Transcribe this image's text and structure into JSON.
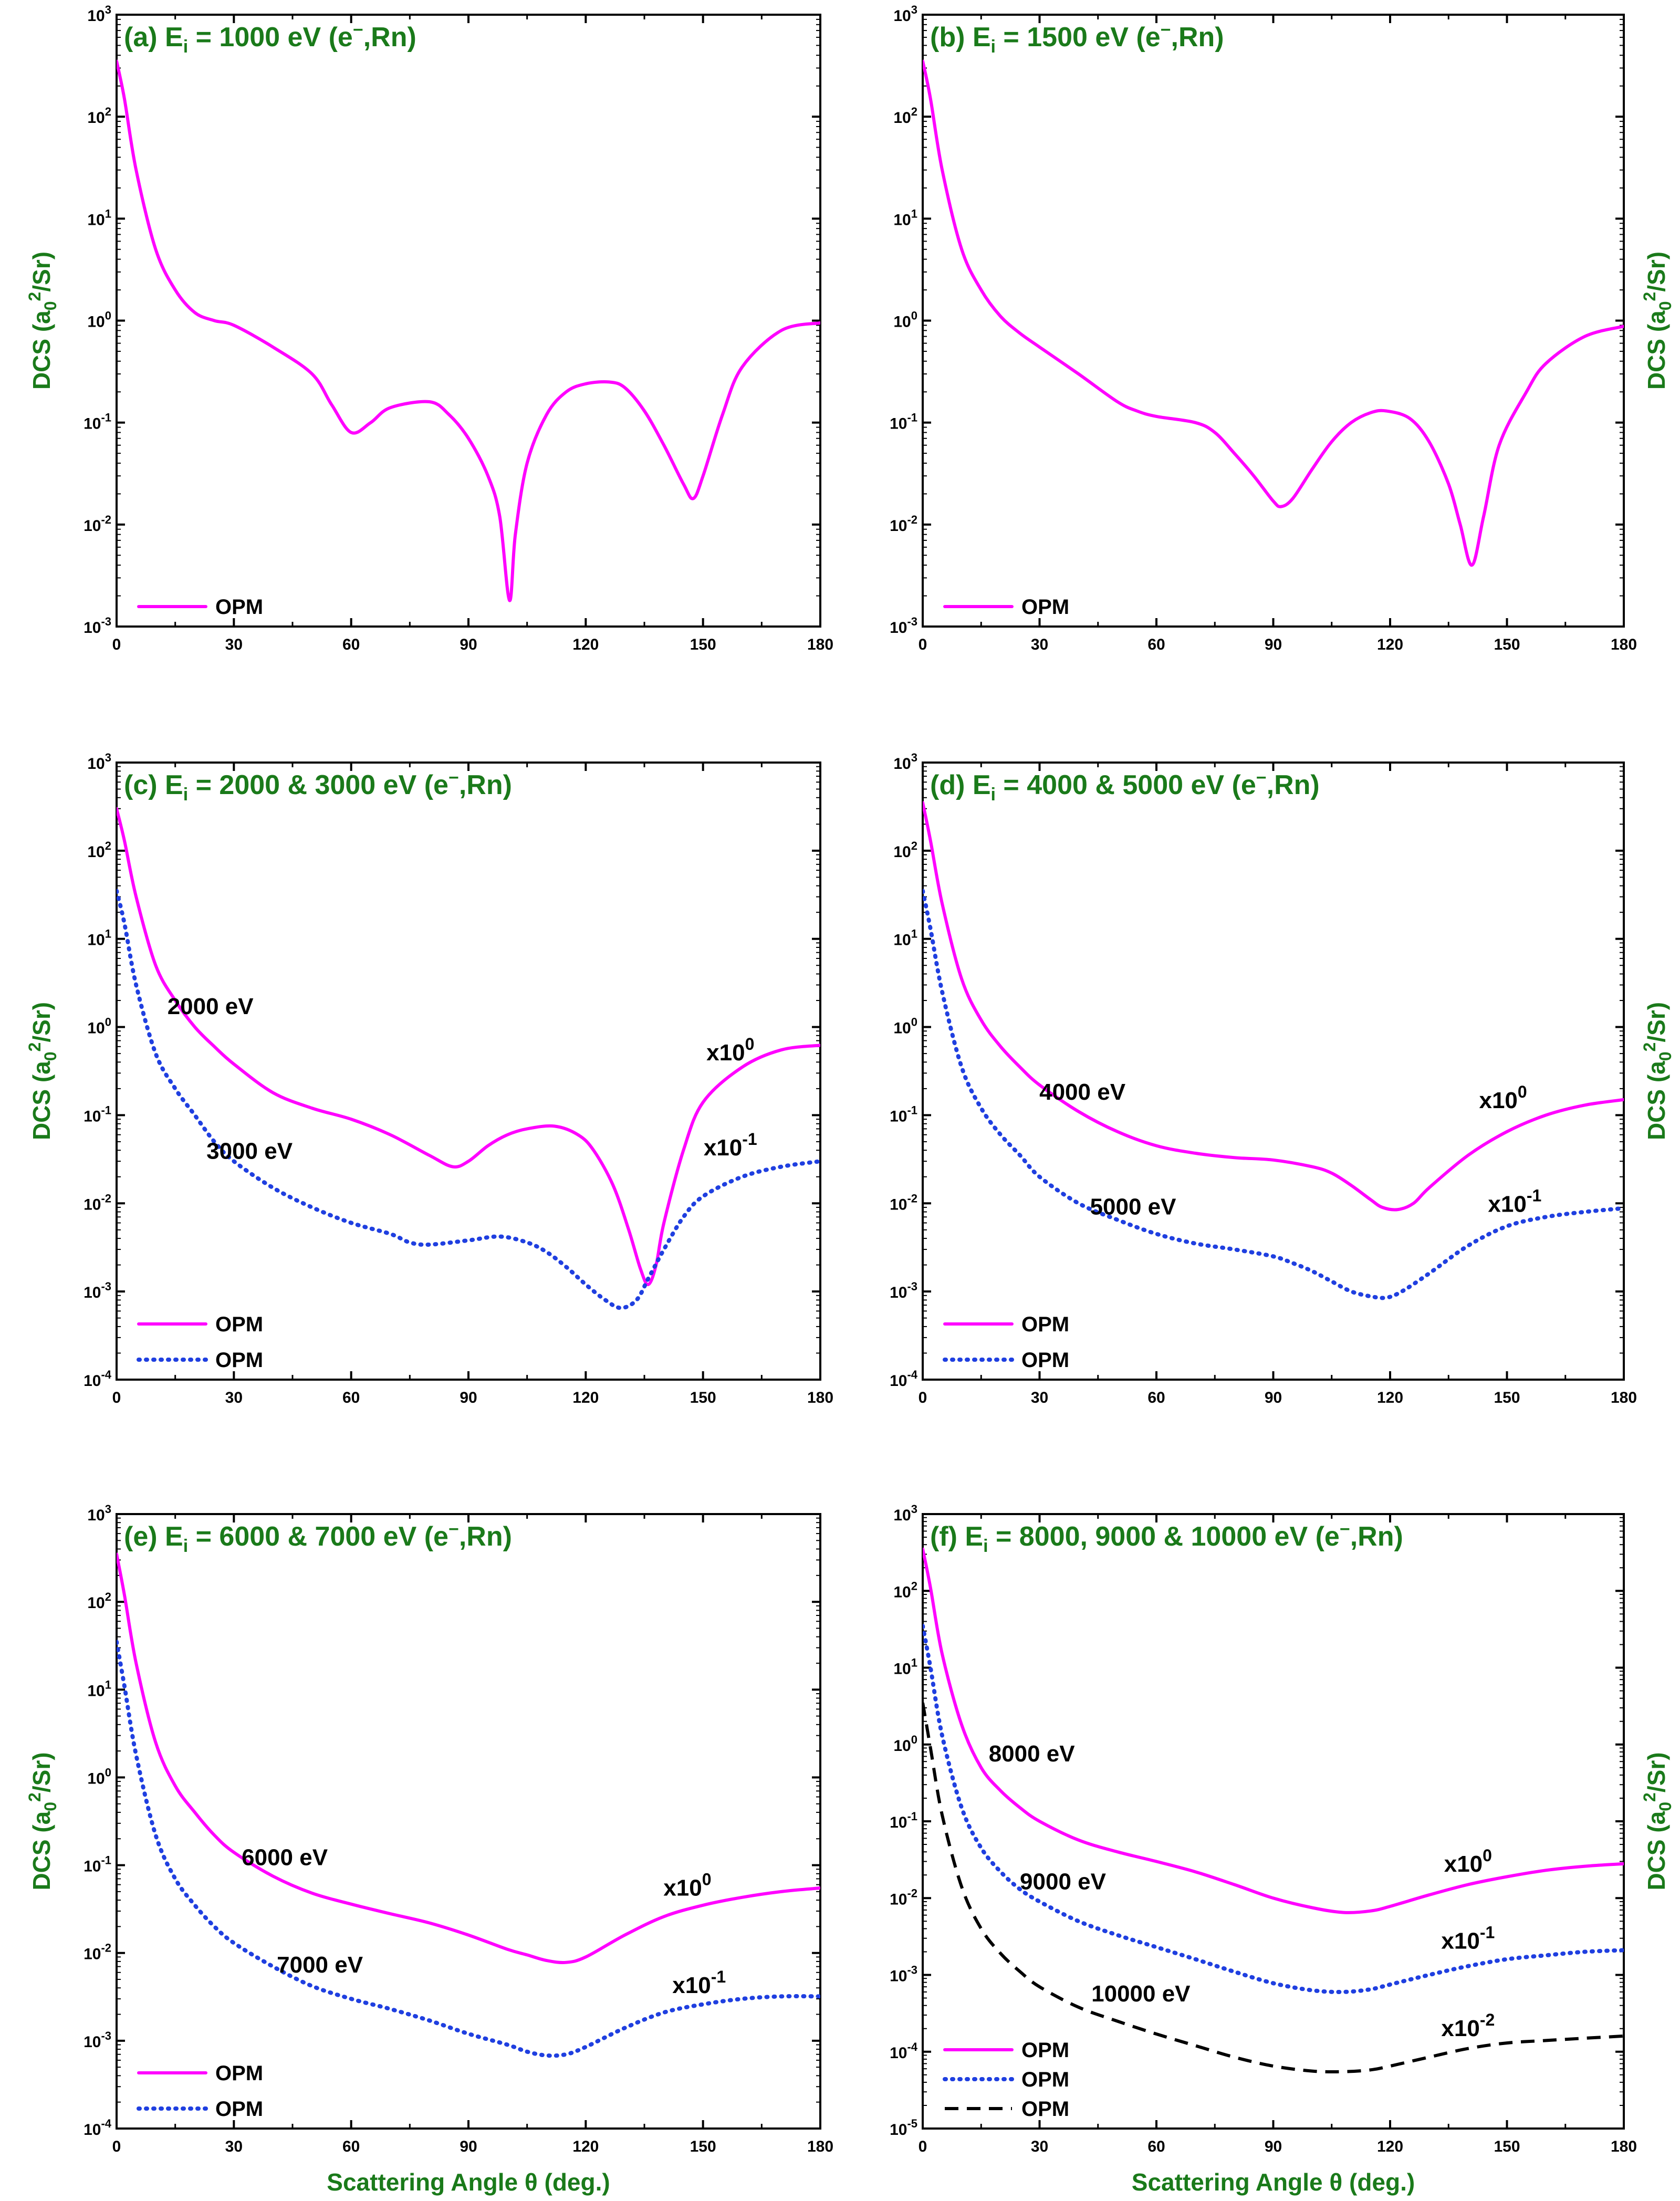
{
  "colors": {
    "magenta": "#ff00ff",
    "blue": "#1f3fe0",
    "black": "#000000",
    "green": "#1a7a1a"
  },
  "chart_data": [
    {
      "id": "a",
      "type": "line",
      "title": "(a) E_i = 1000 eV (e⁻,Rn)",
      "title_parts": {
        "pre": "(a) E",
        "sub": "i",
        "post": " = 1000 eV (e",
        "sup": "−",
        "tail": ",Rn)"
      },
      "ylabel": "DCS (a0²/Sr)",
      "xlabel": "",
      "xlim": [
        0,
        180
      ],
      "ylim_exp": [
        -3,
        3
      ],
      "yscale": "log",
      "xticks": [
        0,
        30,
        60,
        90,
        120,
        150,
        180
      ],
      "legend": [
        {
          "label": "OPM",
          "style": "solid",
          "color": "#ff00ff"
        }
      ],
      "annotations": [],
      "series": [
        {
          "name": "OPM",
          "style": "solid",
          "color": "#ff00ff",
          "x": [
            0,
            2,
            5,
            10,
            15,
            20,
            25,
            30,
            40,
            50,
            55,
            60,
            65,
            70,
            80,
            85,
            90,
            95,
            98,
            100.5,
            102,
            105,
            110,
            115,
            120,
            126,
            130,
            135,
            140,
            145,
            147.5,
            150,
            155,
            160,
            170,
            180
          ],
          "y": [
            350,
            150,
            30,
            5,
            2,
            1.2,
            1.0,
            0.9,
            0.55,
            0.3,
            0.15,
            0.08,
            0.1,
            0.14,
            0.16,
            0.12,
            0.07,
            0.03,
            0.012,
            0.0018,
            0.008,
            0.04,
            0.12,
            0.2,
            0.24,
            0.25,
            0.22,
            0.13,
            0.06,
            0.025,
            0.018,
            0.03,
            0.12,
            0.35,
            0.8,
            0.95
          ]
        }
      ]
    },
    {
      "id": "b",
      "type": "line",
      "title": "(b) E_i = 1500 eV (e⁻,Rn)",
      "title_parts": {
        "pre": "(b) E",
        "sub": "i",
        "post": " = 1500 eV (e",
        "sup": "−",
        "tail": ",Rn)"
      },
      "ylabel": "DCS (a0²/Sr)",
      "xlabel": "",
      "xlim": [
        0,
        180
      ],
      "ylim_exp": [
        -3,
        3
      ],
      "yscale": "log",
      "xticks": [
        0,
        30,
        60,
        90,
        120,
        150,
        180
      ],
      "legend": [
        {
          "label": "OPM",
          "style": "solid",
          "color": "#ff00ff"
        }
      ],
      "annotations": [],
      "series": [
        {
          "name": "OPM",
          "style": "solid",
          "color": "#ff00ff",
          "x": [
            0,
            2,
            5,
            10,
            15,
            20,
            25,
            30,
            40,
            50,
            55,
            60,
            70,
            75,
            80,
            85,
            90,
            92,
            95,
            100,
            105,
            110,
            115,
            119,
            125,
            130,
            135,
            138,
            141,
            144,
            148,
            155,
            160,
            170,
            180
          ],
          "y": [
            350,
            150,
            30,
            5,
            2,
            1.1,
            0.75,
            0.55,
            0.3,
            0.16,
            0.13,
            0.115,
            0.1,
            0.08,
            0.05,
            0.03,
            0.017,
            0.015,
            0.018,
            0.035,
            0.065,
            0.1,
            0.125,
            0.13,
            0.11,
            0.065,
            0.025,
            0.01,
            0.004,
            0.012,
            0.06,
            0.2,
            0.38,
            0.7,
            0.88
          ]
        }
      ]
    },
    {
      "id": "c",
      "type": "line",
      "title": "(c) E_i = 2000 & 3000 eV (e⁻,Rn)",
      "title_parts": {
        "pre": "(c) E",
        "sub": "i",
        "post": " = 2000 & 3000 eV (e",
        "sup": "−",
        "tail": ",Rn)"
      },
      "ylabel": "DCS (a0²/Sr)",
      "xlabel": "",
      "xlim": [
        0,
        180
      ],
      "ylim_exp": [
        -4,
        3
      ],
      "yscale": "log",
      "xticks": [
        0,
        30,
        60,
        90,
        120,
        150,
        180
      ],
      "legend": [
        {
          "label": "OPM",
          "style": "solid",
          "color": "#ff00ff"
        },
        {
          "label": "OPM",
          "style": "dotted",
          "color": "#1f3fe0"
        }
      ],
      "annotations": [
        {
          "text": "2000 eV",
          "x": 24,
          "y": 1.4
        },
        {
          "text": "3000 eV",
          "x": 34,
          "y": 0.032
        },
        {
          "text": "x10",
          "sup": "0",
          "x": 157,
          "y": 0.42
        },
        {
          "text": "x10",
          "sup": "-1",
          "x": 157,
          "y": 0.035
        }
      ],
      "series": [
        {
          "name": "2000 eV",
          "style": "solid",
          "color": "#ff00ff",
          "x": [
            0,
            2,
            5,
            10,
            15,
            20,
            25,
            30,
            40,
            50,
            60,
            70,
            80,
            86,
            90,
            95,
            100,
            105,
            112,
            118,
            122,
            127,
            131,
            134,
            136,
            138,
            140,
            145,
            150,
            160,
            170,
            180
          ],
          "y": [
            300,
            130,
            30,
            5,
            2,
            1.0,
            0.6,
            0.38,
            0.18,
            0.12,
            0.09,
            0.06,
            0.035,
            0.026,
            0.03,
            0.045,
            0.06,
            0.07,
            0.075,
            0.06,
            0.04,
            0.016,
            0.005,
            0.0018,
            0.0012,
            0.002,
            0.006,
            0.04,
            0.14,
            0.35,
            0.55,
            0.62
          ]
        },
        {
          "name": "3000 eV",
          "style": "dotted",
          "color": "#1f3fe0",
          "x": [
            0,
            2,
            5,
            10,
            15,
            20,
            25,
            30,
            40,
            50,
            60,
            70,
            75,
            80,
            90,
            98,
            105,
            110,
            115,
            120,
            125,
            129,
            133,
            136,
            140,
            145,
            150,
            160,
            170,
            180
          ],
          "y": [
            35,
            15,
            3,
            0.5,
            0.2,
            0.1,
            0.05,
            0.03,
            0.015,
            0.009,
            0.006,
            0.0045,
            0.0036,
            0.0034,
            0.0038,
            0.0042,
            0.0036,
            0.0028,
            0.0019,
            0.0012,
            0.0008,
            0.00065,
            0.0008,
            0.0014,
            0.003,
            0.007,
            0.012,
            0.02,
            0.026,
            0.03
          ]
        }
      ]
    },
    {
      "id": "d",
      "type": "line",
      "title": "(d) E_i = 4000 & 5000 eV (e⁻,Rn)",
      "title_parts": {
        "pre": "(d) E",
        "sub": "i",
        "post": " = 4000 & 5000 eV (e",
        "sup": "−",
        "tail": ",Rn)"
      },
      "ylabel": "DCS (a0²/Sr)",
      "xlabel": "",
      "xlim": [
        0,
        180
      ],
      "ylim_exp": [
        -4,
        3
      ],
      "yscale": "log",
      "xticks": [
        0,
        30,
        60,
        90,
        120,
        150,
        180
      ],
      "legend": [
        {
          "label": "OPM",
          "style": "solid",
          "color": "#ff00ff"
        },
        {
          "label": "OPM",
          "style": "dotted",
          "color": "#1f3fe0"
        }
      ],
      "annotations": [
        {
          "text": "4000 eV",
          "x": 41,
          "y": 0.15
        },
        {
          "text": "5000 eV",
          "x": 54,
          "y": 0.0075
        },
        {
          "text": "x10",
          "sup": "0",
          "x": 149,
          "y": 0.12
        },
        {
          "text": "x10",
          "sup": "-1",
          "x": 152,
          "y": 0.008
        }
      ],
      "series": [
        {
          "name": "4000 eV",
          "style": "solid",
          "color": "#ff00ff",
          "x": [
            0,
            2,
            5,
            10,
            15,
            20,
            25,
            30,
            40,
            50,
            60,
            70,
            80,
            90,
            100,
            105,
            110,
            115,
            118,
            122,
            126,
            130,
            140,
            150,
            160,
            170,
            180
          ],
          "y": [
            350,
            130,
            25,
            3.5,
            1.2,
            0.6,
            0.35,
            0.22,
            0.11,
            0.065,
            0.045,
            0.037,
            0.033,
            0.031,
            0.026,
            0.022,
            0.016,
            0.011,
            0.009,
            0.0085,
            0.01,
            0.015,
            0.035,
            0.065,
            0.1,
            0.13,
            0.15
          ]
        },
        {
          "name": "5000 eV",
          "style": "dotted",
          "color": "#1f3fe0",
          "x": [
            0,
            2,
            5,
            10,
            15,
            20,
            25,
            30,
            40,
            50,
            60,
            70,
            80,
            90,
            95,
            100,
            105,
            110,
            115,
            119,
            123,
            130,
            140,
            150,
            160,
            170,
            180
          ],
          "y": [
            35,
            13,
            2.5,
            0.35,
            0.12,
            0.06,
            0.035,
            0.02,
            0.01,
            0.0065,
            0.0045,
            0.0035,
            0.003,
            0.0025,
            0.0021,
            0.0017,
            0.0013,
            0.001,
            0.00088,
            0.00085,
            0.001,
            0.0016,
            0.0033,
            0.0055,
            0.007,
            0.008,
            0.0088
          ]
        }
      ]
    },
    {
      "id": "e",
      "type": "line",
      "title": "(e) E_i = 6000 & 7000 eV (e⁻,Rn)",
      "title_parts": {
        "pre": "(e) E",
        "sub": "i",
        "post": " = 6000 & 7000 eV (e",
        "sup": "−",
        "tail": ",Rn)"
      },
      "ylabel": "DCS (a0²/Sr)",
      "xlabel": "Scattering Angle θ (deg.)",
      "xlim": [
        0,
        180
      ],
      "ylim_exp": [
        -4,
        3
      ],
      "yscale": "log",
      "xticks": [
        0,
        30,
        60,
        90,
        120,
        150,
        180
      ],
      "legend": [
        {
          "label": "OPM",
          "style": "solid",
          "color": "#ff00ff"
        },
        {
          "label": "OPM",
          "style": "dotted",
          "color": "#1f3fe0"
        }
      ],
      "annotations": [
        {
          "text": "6000 eV",
          "x": 43,
          "y": 0.1
        },
        {
          "text": "7000 eV",
          "x": 52,
          "y": 0.006
        },
        {
          "text": "x10",
          "sup": "0",
          "x": 146,
          "y": 0.045
        },
        {
          "text": "x10",
          "sup": "-1",
          "x": 149,
          "y": 0.0035
        }
      ],
      "series": [
        {
          "name": "6000 eV",
          "style": "solid",
          "color": "#ff00ff",
          "x": [
            0,
            2,
            5,
            10,
            15,
            20,
            25,
            30,
            40,
            50,
            60,
            70,
            80,
            90,
            100,
            105,
            110,
            115,
            120,
            130,
            140,
            150,
            160,
            170,
            180
          ],
          "y": [
            350,
            120,
            20,
            2.5,
            0.8,
            0.4,
            0.22,
            0.14,
            0.075,
            0.048,
            0.036,
            0.028,
            0.022,
            0.016,
            0.011,
            0.0095,
            0.0082,
            0.0078,
            0.009,
            0.016,
            0.026,
            0.035,
            0.043,
            0.05,
            0.055
          ]
        },
        {
          "name": "7000 eV",
          "style": "dotted",
          "color": "#1f3fe0",
          "x": [
            0,
            2,
            5,
            10,
            15,
            20,
            25,
            30,
            40,
            50,
            60,
            70,
            80,
            90,
            100,
            105,
            110,
            115,
            120,
            130,
            140,
            150,
            160,
            170,
            180
          ],
          "y": [
            35,
            11,
            1.8,
            0.22,
            0.07,
            0.035,
            0.02,
            0.013,
            0.007,
            0.0042,
            0.003,
            0.0023,
            0.0017,
            0.0012,
            0.0009,
            0.00075,
            0.00068,
            0.0007,
            0.00085,
            0.0014,
            0.0021,
            0.0026,
            0.003,
            0.0032,
            0.0032
          ]
        }
      ]
    },
    {
      "id": "f",
      "type": "line",
      "title": "(f) E_i = 8000, 9000 & 10000 eV (e⁻,Rn)",
      "title_parts": {
        "pre": "(f) E",
        "sub": "i",
        "post": " = 8000, 9000 & 10000 eV (e",
        "sup": "−",
        "tail": ",Rn)"
      },
      "ylabel": "DCS (a0²/Sr)",
      "xlabel": "Scattering Angle θ (deg.)",
      "xlim": [
        0,
        180
      ],
      "ylim_exp": [
        -5,
        3
      ],
      "yscale": "log",
      "xticks": [
        0,
        30,
        60,
        90,
        120,
        150,
        180
      ],
      "legend": [
        {
          "label": "OPM",
          "style": "solid",
          "color": "#ff00ff"
        },
        {
          "label": "OPM",
          "style": "dotted",
          "color": "#1f3fe0"
        },
        {
          "label": "OPM",
          "style": "dashed",
          "color": "#000000"
        }
      ],
      "annotations": [
        {
          "text": "8000 eV",
          "x": 28,
          "y": 0.6
        },
        {
          "text": "9000 eV",
          "x": 36,
          "y": 0.013
        },
        {
          "text": "10000 eV",
          "x": 56,
          "y": 0.00045
        },
        {
          "text": "x10",
          "sup": "0",
          "x": 140,
          "y": 0.022
        },
        {
          "text": "x10",
          "sup": "-1",
          "x": 140,
          "y": 0.0022
        },
        {
          "text": "x10",
          "sup": "-2",
          "x": 140,
          "y": 0.00016
        }
      ],
      "series": [
        {
          "name": "8000 eV",
          "style": "solid",
          "color": "#ff00ff",
          "x": [
            0,
            2,
            5,
            10,
            15,
            20,
            25,
            30,
            40,
            50,
            60,
            70,
            80,
            90,
            100,
            108,
            115,
            120,
            130,
            140,
            150,
            160,
            170,
            180
          ],
          "y": [
            350,
            110,
            15,
            1.8,
            0.5,
            0.25,
            0.15,
            0.1,
            0.057,
            0.04,
            0.03,
            0.022,
            0.015,
            0.01,
            0.0075,
            0.0065,
            0.0068,
            0.0078,
            0.011,
            0.015,
            0.019,
            0.023,
            0.026,
            0.028
          ]
        },
        {
          "name": "9000 eV",
          "style": "dotted",
          "color": "#1f3fe0",
          "x": [
            0,
            2,
            5,
            10,
            15,
            20,
            25,
            30,
            40,
            50,
            60,
            70,
            80,
            90,
            100,
            108,
            115,
            120,
            130,
            140,
            150,
            160,
            170,
            180
          ],
          "y": [
            35,
            10,
            1.3,
            0.15,
            0.045,
            0.022,
            0.013,
            0.009,
            0.005,
            0.0033,
            0.0023,
            0.0016,
            0.0011,
            0.00078,
            0.00063,
            0.0006,
            0.00065,
            0.00075,
            0.001,
            0.0013,
            0.0016,
            0.0018,
            0.002,
            0.0021
          ]
        },
        {
          "name": "10000 eV",
          "style": "dashed",
          "color": "#000000",
          "x": [
            0,
            2,
            5,
            10,
            15,
            20,
            25,
            30,
            40,
            50,
            60,
            70,
            80,
            90,
            100,
            108,
            115,
            120,
            130,
            140,
            150,
            160,
            170,
            180
          ],
          "y": [
            3.5,
            0.9,
            0.12,
            0.014,
            0.004,
            0.0019,
            0.0011,
            0.0007,
            0.00038,
            0.00025,
            0.00017,
            0.00012,
            8.5e-05,
            6.5e-05,
            5.6e-05,
            5.5e-05,
            5.8e-05,
            6.5e-05,
            8.5e-05,
            0.00011,
            0.00013,
            0.00014,
            0.00015,
            0.00016
          ]
        }
      ]
    }
  ]
}
